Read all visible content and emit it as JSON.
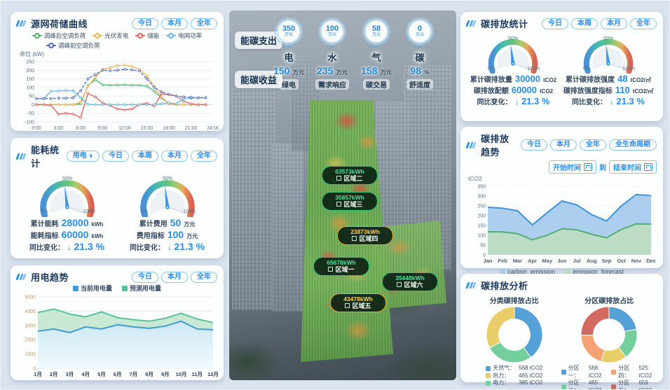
{
  "icons": {
    "arrow_down": "↓",
    "caret_down": "∨"
  },
  "gauge_scale": [
    "0%",
    "50%",
    "100%"
  ],
  "source_panel": {
    "title": "源网荷储曲线",
    "buttons": [
      "今日",
      "本月",
      "全年"
    ],
    "unit": "单位 (kW)"
  },
  "energy_panel": {
    "title": "能耗统计",
    "dropdown": "用电",
    "buttons": [
      "今日",
      "本周",
      "本月",
      "全年"
    ],
    "gauges": [
      {
        "rows": [
          {
            "label": "累计能耗",
            "value": "28000",
            "unit": "kWh"
          },
          {
            "label": "能耗指标",
            "value": "60000",
            "unit": "kWh"
          }
        ],
        "change_label": "同比变化：",
        "change_value": "21.3 %"
      },
      {
        "rows": [
          {
            "label": "累计费用",
            "value": "50",
            "unit": "万元"
          },
          {
            "label": "费用指标",
            "value": "100",
            "unit": "万元"
          }
        ],
        "change_label": "同比变化：",
        "change_value": "21.3 %"
      }
    ]
  },
  "power_trend_panel": {
    "title": "用电趋势",
    "buttons": [
      "今日",
      "本月",
      "全年"
    ]
  },
  "center": {
    "expense_label": "能碳支出",
    "income_label": "能碳收益",
    "expense_items": [
      {
        "value": "350",
        "unit": "万元",
        "name": "电"
      },
      {
        "value": "100",
        "unit": "万元",
        "name": "水"
      },
      {
        "value": "58",
        "unit": "万元",
        "name": "气"
      },
      {
        "value": "0",
        "unit": "万元",
        "name": "碳"
      }
    ],
    "income_items": [
      {
        "value": "150",
        "unit": "万元",
        "name": "绿电"
      },
      {
        "value": "235",
        "unit": "万元",
        "name": "需求响应"
      },
      {
        "value": "158",
        "unit": "万元",
        "name": "碳交易"
      },
      {
        "value": "98",
        "unit": "%",
        "name": "舒适度"
      }
    ],
    "zones": [
      {
        "name": "区域二",
        "value": "63573kWh",
        "accent": "#2bc57e",
        "text": "#4fe3a1"
      },
      {
        "name": "区域三",
        "value": "35857kWh",
        "accent": "#2bc57e",
        "text": "#4fe3a1"
      },
      {
        "name": "区域四",
        "value": "23873kWh",
        "accent": "#eda92f",
        "text": "#ffd24d"
      },
      {
        "name": "区域一",
        "value": "65678kWh",
        "accent": "#2bc57e",
        "text": "#4fe3a1"
      },
      {
        "name": "区域六",
        "value": "35448kWh",
        "accent": "#2bc57e",
        "text": "#4fe3a1"
      },
      {
        "name": "区域五",
        "value": "43478kWh",
        "accent": "#eda92f",
        "text": "#ffd24d"
      }
    ]
  },
  "carbon_stats_panel": {
    "title": "碳排放统计",
    "buttons": [
      "今日",
      "本周",
      "本月",
      "全年"
    ],
    "gauges": [
      {
        "rows": [
          {
            "label": "累计碳排放量",
            "value": "30000",
            "unit": "tCO2"
          },
          {
            "label": "碳排放配额",
            "value": "60000",
            "unit": "tCO2"
          }
        ],
        "change_label": "同比变化：",
        "change_value": "21.3 %"
      },
      {
        "rows": [
          {
            "label": "累计碳排放强度",
            "value": "48",
            "unit": "tCO2/㎡"
          },
          {
            "label": "碳排放强度指标",
            "value": "110",
            "unit": "tCO2/㎡"
          }
        ],
        "change_label": "同比变化：",
        "change_value": "21.3 %"
      }
    ]
  },
  "carbon_trend_panel": {
    "title": "碳排放趋势",
    "buttons": [
      "今日",
      "本月",
      "全年",
      "全生命周期"
    ],
    "start_label": "开始时间",
    "to_label": "到",
    "end_label": "结束时间",
    "ylabel": "tCO2"
  },
  "carbon_analysis_panel": {
    "title": "碳排放分析",
    "left_title": "分类碳排放占比",
    "right_title": "分区碳排放占比"
  },
  "chart_data": [
    {
      "id": "source_grid_curve",
      "type": "line",
      "title": "源网荷储曲线",
      "ylabel": "单位 (kW)",
      "ylim": [
        -100,
        250
      ],
      "yticks": [
        -100,
        -50,
        0,
        50,
        100,
        150,
        200,
        250
      ],
      "x_ticks": [
        "0:00",
        "3:00",
        "6:00",
        "9:00",
        "12:00",
        "15:00",
        "18:00",
        "21:00",
        "24:00"
      ],
      "series": [
        {
          "name": "调峰后空调负荷",
          "color": "#4eb36a",
          "dash": null,
          "values": [
            0,
            0,
            0,
            0,
            0,
            0,
            5,
            110,
            145,
            115,
            113,
            114,
            115,
            113,
            112,
            108,
            78,
            40,
            5,
            0,
            0,
            0,
            0,
            0
          ]
        },
        {
          "name": "光伏发电",
          "color": "#f2b04e",
          "dash": null,
          "values": [
            0,
            0,
            0,
            0,
            0,
            0,
            15,
            105,
            160,
            205,
            215,
            226,
            230,
            222,
            205,
            168,
            105,
            45,
            5,
            0,
            0,
            0,
            0,
            0
          ]
        },
        {
          "name": "储能",
          "color": "#e2605c",
          "dash": null,
          "values": [
            0,
            0,
            -5,
            -55,
            -50,
            -55,
            -75,
            65,
            45,
            10,
            -5,
            -25,
            -30,
            -25,
            0,
            8,
            -8,
            62,
            58,
            50,
            20,
            5,
            0,
            0
          ]
        },
        {
          "name": "电网功率",
          "color": "#66b7e6",
          "dash": null,
          "values": [
            35,
            36,
            78,
            80,
            82,
            80,
            40,
            2,
            0,
            0,
            0,
            0,
            0,
            0,
            0,
            0,
            0,
            5,
            10,
            5,
            35,
            38,
            40,
            40
          ]
        },
        {
          "name": "调峰前空调负荷",
          "color": "#4a69bd",
          "dash": "4,2",
          "values": [
            35,
            35,
            35,
            38,
            38,
            40,
            80,
            150,
            175,
            200,
            197,
            200,
            205,
            202,
            195,
            150,
            100,
            75,
            60,
            50,
            45,
            42,
            40,
            40
          ]
        }
      ]
    },
    {
      "id": "power_trend",
      "type": "area",
      "title": "用电趋势",
      "categories": [
        "1月",
        "2月",
        "3月",
        "4月",
        "5月",
        "6月",
        "7月",
        "8月",
        "9月",
        "10月",
        "11月",
        "12月"
      ],
      "ylim": [
        0,
        5000
      ],
      "yticks": [
        0,
        1000,
        2000,
        3000,
        4000,
        5000
      ],
      "draw_order": [
        1,
        0
      ],
      "grid": "solid",
      "tick_color": "#bd9a66",
      "xlab_color": "#2f4458",
      "series": [
        {
          "name": "当前用电量",
          "color": "#3f9bd9",
          "fill_grad": [
            "#cde8f7",
            "#f3fafd"
          ],
          "values": [
            2600,
            2750,
            2500,
            2900,
            2750,
            3050,
            2900,
            2800,
            2950,
            3300,
            2750,
            2700
          ]
        },
        {
          "name": "预测用电量",
          "color": "#57c197",
          "fill": "#c6e8d3",
          "values": [
            3900,
            4150,
            3800,
            3600,
            3950,
            3550,
            3400,
            3300,
            3500,
            3850,
            3450,
            3200
          ]
        }
      ]
    },
    {
      "id": "carbon_trend",
      "type": "area",
      "title": "碳排放趋势",
      "ylabel": "tCO2",
      "categories": [
        "Jan",
        "Feb",
        "Mar",
        "Apr",
        "May",
        "Jun",
        "Jul",
        "Aug",
        "Sep",
        "Oct",
        "Nov",
        "Dec"
      ],
      "ylim": [
        0,
        350
      ],
      "yticks": [
        0,
        50,
        100,
        150,
        200,
        250,
        300,
        350
      ],
      "draw_order": [
        0,
        1
      ],
      "grid": "dotted",
      "tick_color": "#5a7086",
      "xlab_color": "#4a6076",
      "series": [
        {
          "name": "carbon_emission",
          "color": "#3e92d8",
          "fill": "#a9ccee",
          "values": [
            243,
            238,
            225,
            153,
            215,
            275,
            255,
            205,
            173,
            250,
            308,
            302
          ]
        },
        {
          "name": "emission_forecast",
          "color": "#53ad72",
          "fill": "#bddcc3",
          "values": [
            118,
            117,
            108,
            77,
            100,
            133,
            128,
            105,
            87,
            130,
            158,
            157
          ]
        }
      ]
    },
    {
      "id": "category_donut",
      "type": "pie",
      "title": "分类碳排放占比",
      "draw_order": [
        0,
        2,
        1
      ],
      "slices": [
        {
          "label": "天然气：",
          "value": 568,
          "color": "#56a0d8",
          "amount": "568 tCO2"
        },
        {
          "label": "热力：",
          "value": 465,
          "color": "#e9cd68",
          "amount": "465 tCO2"
        },
        {
          "label": "电力：",
          "value": 385,
          "color": "#74cf9c",
          "amount": "385 tCO2"
        }
      ]
    },
    {
      "id": "zone_donut",
      "type": "pie",
      "title": "分区碳排放占比",
      "draw_order": [
        0,
        1,
        2,
        3,
        4
      ],
      "slices": [
        {
          "label": "分区一：",
          "value": 568,
          "color": "#56a0d8",
          "amount": "568 tCO2"
        },
        {
          "label": "分区二：",
          "value": 465,
          "color": "#74cf9c",
          "amount": "465 tCO2"
        },
        {
          "label": "分区三：",
          "value": 385,
          "color": "#e9cd68",
          "amount": "385 tCO2"
        },
        {
          "label": "分区四：",
          "value": 525,
          "color": "#f2a273",
          "amount": "525 tCO2"
        },
        {
          "label": "分区五：",
          "value": 659,
          "color": "#d26a62",
          "amount": "659 tCO2"
        }
      ]
    }
  ]
}
